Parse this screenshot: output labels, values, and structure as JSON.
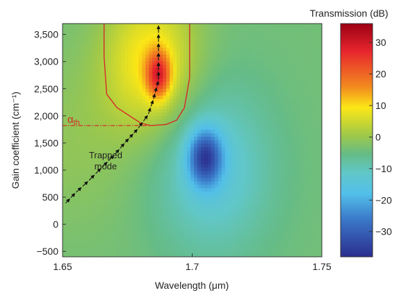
{
  "chart_data": {
    "type": "heatmap",
    "xlabel": "Wavelength (μm)",
    "ylabel": "Gain coefficient (cm⁻¹)",
    "xlim": [
      1.65,
      1.75
    ],
    "ylim": [
      -600,
      3700
    ],
    "x_ticks": [
      1.65,
      1.7,
      1.75
    ],
    "x_tick_labels": [
      "1.65",
      "1.7",
      "1.75"
    ],
    "y_ticks": [
      -500,
      0,
      500,
      1000,
      1500,
      2000,
      2500,
      3000,
      3500
    ],
    "y_tick_labels": [
      "−500",
      "0",
      "500",
      "1,000",
      "1,500",
      "2,000",
      "2,500",
      "3,000",
      "3,500"
    ],
    "colorbar": {
      "label": "Transmission (dB)",
      "range": [
        -38,
        36
      ],
      "ticks": [
        30,
        20,
        10,
        0,
        -10,
        -20,
        -30
      ],
      "tick_labels": [
        "30",
        "20",
        "10",
        "0",
        "−10",
        "−20",
        "−30"
      ]
    },
    "features": {
      "peak": {
        "x": 1.687,
        "y": 2750,
        "value": 36
      },
      "dip": {
        "x": 1.705,
        "y": 1230,
        "value": -38
      },
      "background_value": -4
    },
    "threshold": {
      "label_main": "α",
      "label_sub": "th",
      "value": 1820,
      "color": "#d42a2a"
    },
    "threshold_contour": [
      [
        1.666,
        3700
      ],
      [
        1.666,
        3100
      ],
      [
        1.667,
        2400
      ],
      [
        1.671,
        2150
      ],
      [
        1.68,
        1870
      ],
      [
        1.684,
        1820
      ],
      [
        1.69,
        1840
      ],
      [
        1.694,
        1920
      ],
      [
        1.697,
        2150
      ],
      [
        1.699,
        2700
      ],
      [
        1.699,
        3300
      ],
      [
        1.699,
        3700
      ]
    ],
    "trapped_mode": {
      "label_line1": "Trapped",
      "label_line2": "mode",
      "points": [
        [
          1.651,
          380
        ],
        [
          1.655,
          580
        ],
        [
          1.66,
          800
        ],
        [
          1.665,
          1040
        ],
        [
          1.67,
          1280
        ],
        [
          1.674,
          1500
        ],
        [
          1.679,
          1760
        ],
        [
          1.683,
          2020
        ],
        [
          1.685,
          2300
        ],
        [
          1.687,
          2650
        ],
        [
          1.687,
          3000
        ],
        [
          1.687,
          3350
        ],
        [
          1.687,
          3680
        ]
      ]
    }
  }
}
